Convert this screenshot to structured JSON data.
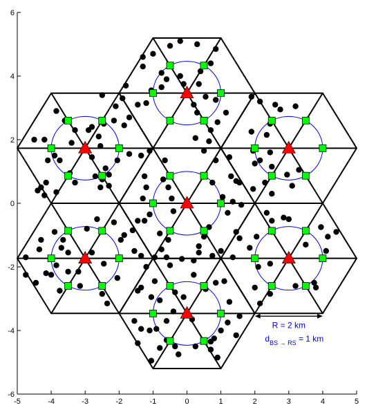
{
  "chart_data": {
    "type": "scatter",
    "title": "",
    "xlabel": "",
    "ylabel": "",
    "xlim": [
      -5,
      5
    ],
    "ylim": [
      -6,
      6
    ],
    "x_ticks": [
      -5,
      -4,
      -3,
      -2,
      -1,
      0,
      1,
      2,
      3,
      4,
      5
    ],
    "y_ticks": [
      -6,
      -4,
      -2,
      0,
      2,
      4,
      6
    ],
    "grid": false,
    "legend": "none",
    "colors": {
      "hex_edge": "#000000",
      "circle": "#0000ff",
      "base_station": "#ff0000",
      "relay_station": "#00ff00",
      "user": "#000000",
      "annotation_text": "#0000ff"
    },
    "cluster": {
      "cell_radius_km": 2,
      "center_hexagons": [
        {
          "x": 0,
          "y": 0
        },
        {
          "x": 0,
          "y": 3.464
        },
        {
          "x": 3,
          "y": 1.732
        },
        {
          "x": 3,
          "y": -1.732
        },
        {
          "x": 0,
          "y": -3.464
        },
        {
          "x": -3,
          "y": -1.732
        },
        {
          "x": -3,
          "y": 1.732
        }
      ],
      "relay_circle_radius_km": 1
    },
    "series": [
      {
        "marker": "triangle",
        "color": "#ff0000",
        "points": [
          [
            0,
            0
          ],
          [
            0,
            3.464
          ],
          [
            3,
            1.732
          ],
          [
            3,
            -1.732
          ],
          [
            0,
            -3.464
          ],
          [
            -3,
            -1.732
          ],
          [
            -3,
            1.732
          ]
        ]
      },
      {
        "marker": "square",
        "color": "#00ff00",
        "per_cell_offsets": [
          [
            1,
            0
          ],
          [
            0.5,
            0.866
          ],
          [
            -0.5,
            0.866
          ],
          [
            -1,
            0
          ],
          [
            -0.5,
            -0.866
          ],
          [
            0.5,
            -0.866
          ]
        ]
      },
      {
        "marker": "dot",
        "color": "#000000",
        "points": [
          [
            -0.2,
            5.1
          ],
          [
            -0.5,
            4.95
          ],
          [
            0.3,
            5.0
          ],
          [
            0.85,
            4.85
          ],
          [
            -1,
            4.7
          ],
          [
            0.7,
            4.4
          ],
          [
            -1.3,
            4.6
          ],
          [
            -0.75,
            4.1
          ],
          [
            0.4,
            4.15
          ],
          [
            -1.3,
            4.3
          ],
          [
            -0.2,
            4.0
          ],
          [
            -0.6,
            3.9
          ],
          [
            0.35,
            3.75
          ],
          [
            -1.05,
            3.55
          ],
          [
            -0.1,
            3.75
          ],
          [
            -0.75,
            3.65
          ],
          [
            0.55,
            3.35
          ],
          [
            0.2,
            3.1
          ],
          [
            -1.2,
            3.15
          ],
          [
            0.3,
            2.85
          ],
          [
            0.85,
            3.25
          ],
          [
            -1.45,
            3.1
          ],
          [
            0.9,
            2.55
          ],
          [
            0.7,
            2.3
          ],
          [
            1.15,
            2.85
          ],
          [
            0.25,
            2.05
          ],
          [
            0.65,
            1.95
          ],
          [
            -1.8,
            3.7
          ],
          [
            -2.5,
            3.4
          ],
          [
            -2.1,
            3.05
          ],
          [
            -1.9,
            3.3
          ],
          [
            -1.7,
            2.7
          ],
          [
            -2.8,
            2.4
          ],
          [
            -2.15,
            2.6
          ],
          [
            -2.45,
            2.5
          ],
          [
            -2.6,
            2.1
          ],
          [
            -1.85,
            2.45
          ],
          [
            -3.85,
            2.9
          ],
          [
            -3.6,
            2.6
          ],
          [
            -3.3,
            2.3
          ],
          [
            -2.9,
            2.3
          ],
          [
            -4.2,
            2.0
          ],
          [
            -3.4,
            1.9
          ],
          [
            -4.5,
            2.0
          ],
          [
            -3.9,
            1.5
          ],
          [
            -4.1,
            1.35
          ],
          [
            -3.75,
            1.35
          ],
          [
            -2.55,
            1.8
          ],
          [
            -2.8,
            1.45
          ],
          [
            -2.05,
            1.35
          ],
          [
            -2.4,
            1.1
          ],
          [
            -2.3,
            0.9
          ],
          [
            -3.45,
            0.95
          ],
          [
            -3.3,
            0.65
          ],
          [
            -4.15,
            0.65
          ],
          [
            -4.3,
            0.5
          ],
          [
            -3.85,
            0.35
          ],
          [
            -2.55,
            0.5
          ],
          [
            -2.3,
            0.55
          ],
          [
            -2.5,
            0.75
          ],
          [
            -2.7,
            0.85
          ],
          [
            -4.2,
            0.25
          ],
          [
            -4.4,
            0.4
          ],
          [
            -1.35,
            1.5
          ],
          [
            -1.25,
            0.85
          ],
          [
            -1.2,
            0.5
          ],
          [
            -1.3,
            0.15
          ],
          [
            -1.7,
            1.55
          ],
          [
            -1.1,
            1.65
          ],
          [
            -0.65,
            1.35
          ],
          [
            -0.7,
            0.75
          ],
          [
            -0.55,
            0.5
          ],
          [
            -0.45,
            0.15
          ],
          [
            -0.4,
            -0.25
          ],
          [
            -1.1,
            -0.35
          ],
          [
            -1.25,
            -0.55
          ],
          [
            -1.45,
            -0.55
          ],
          [
            -1.6,
            -0.85
          ],
          [
            -1.85,
            -1.0
          ],
          [
            -1.95,
            -1.15
          ],
          [
            -1.55,
            -1.5
          ],
          [
            -1.35,
            -1.65
          ],
          [
            0.5,
            1.65
          ],
          [
            0.85,
            1.35
          ],
          [
            1.25,
            1.45
          ],
          [
            1.3,
            0.85
          ],
          [
            1.45,
            0.7
          ],
          [
            1.55,
            0.65
          ],
          [
            0.75,
            0.65
          ],
          [
            1.05,
            0.2
          ],
          [
            1.35,
            0.05
          ],
          [
            1.2,
            -0.3
          ],
          [
            1.45,
            -0.9
          ],
          [
            1.55,
            -1.1
          ],
          [
            1.35,
            -1.7
          ],
          [
            1.0,
            -1.5
          ],
          [
            0.75,
            -1.65
          ],
          [
            0.5,
            -1.05
          ],
          [
            0.65,
            -0.75
          ],
          [
            0.35,
            -1.35
          ],
          [
            0.35,
            -1.55
          ],
          [
            0.2,
            -1.8
          ],
          [
            -0.8,
            -0.95
          ],
          [
            -0.55,
            -1.15
          ],
          [
            -0.75,
            -1.45
          ],
          [
            -0.95,
            -1.7
          ],
          [
            -0.15,
            -1.75
          ],
          [
            -0.6,
            -1.7
          ],
          [
            2.15,
            3.2
          ],
          [
            1.9,
            3.35
          ],
          [
            2.6,
            3.1
          ],
          [
            2.75,
            2.95
          ],
          [
            3.2,
            3.05
          ],
          [
            3.5,
            2.6
          ],
          [
            2.45,
            2.5
          ],
          [
            1.9,
            2.25
          ],
          [
            2.35,
            2.15
          ],
          [
            1.95,
            1.65
          ],
          [
            2.45,
            1.6
          ],
          [
            2.15,
            1.35
          ],
          [
            2.0,
            1.25
          ],
          [
            2.5,
            1.15
          ],
          [
            3.3,
            1.05
          ],
          [
            2.95,
            0.9
          ],
          [
            3.1,
            0.55
          ],
          [
            1.95,
            0.45
          ],
          [
            2.5,
            0.3
          ],
          [
            2.3,
            0.65
          ],
          [
            1.6,
            -0.05
          ],
          [
            2.35,
            -0.3
          ],
          [
            2.5,
            -0.55
          ],
          [
            2.85,
            -0.45
          ],
          [
            3.0,
            -0.5
          ],
          [
            3.95,
            -0.75
          ],
          [
            4.4,
            -0.9
          ],
          [
            3.5,
            -1.3
          ],
          [
            2.05,
            -1.05
          ],
          [
            2.5,
            -0.9
          ],
          [
            1.85,
            -1.4
          ],
          [
            4.1,
            -1.5
          ],
          [
            4.15,
            -1.05
          ],
          [
            2.45,
            -1.9
          ],
          [
            2.1,
            -2.0
          ],
          [
            2.0,
            -2.65
          ],
          [
            2.45,
            -2.85
          ],
          [
            3.75,
            -2.5
          ],
          [
            3.8,
            -2.65
          ],
          [
            2.15,
            -3.15
          ],
          [
            3.2,
            -2.6
          ],
          [
            -4.75,
            -1.7
          ],
          [
            -4.45,
            -2.5
          ],
          [
            -4.3,
            -1.15
          ],
          [
            -4.35,
            -1.45
          ],
          [
            -3.9,
            -0.9
          ],
          [
            -3.65,
            -1.15
          ],
          [
            -3.7,
            -1.4
          ],
          [
            -3.5,
            -1.55
          ],
          [
            -2.65,
            -0.5
          ],
          [
            -2.95,
            -0.8
          ],
          [
            -2.15,
            -0.6
          ],
          [
            -2.8,
            -1.55
          ],
          [
            -2.45,
            -1.9
          ],
          [
            -2.05,
            -2.35
          ],
          [
            -2.5,
            -2.85
          ],
          [
            -2.35,
            -3.15
          ],
          [
            -3.75,
            -2.75
          ],
          [
            -4.0,
            -2.25
          ],
          [
            -4.15,
            -2.2
          ],
          [
            -3.15,
            -2.6
          ],
          [
            -3.85,
            -1.95
          ],
          [
            -3.2,
            -2.15
          ],
          [
            -3.5,
            -2.15
          ],
          [
            -4.75,
            -2.25
          ],
          [
            -1.2,
            -2.0
          ],
          [
            -0.5,
            -1.95
          ],
          [
            -0.95,
            -2.45
          ],
          [
            -1.35,
            -2.65
          ],
          [
            -1.45,
            -2.75
          ],
          [
            -1.05,
            -2.95
          ],
          [
            -0.8,
            -3.05
          ],
          [
            -0.35,
            -2.8
          ],
          [
            -0.1,
            -2.95
          ],
          [
            -0.4,
            -3.4
          ],
          [
            0.15,
            -3.65
          ],
          [
            -0.6,
            -3.7
          ],
          [
            -1.55,
            -3.7
          ],
          [
            -1.35,
            -3.95
          ],
          [
            -1.1,
            -4.0
          ],
          [
            -0.9,
            -3.95
          ],
          [
            0.2,
            -2.25
          ],
          [
            0.55,
            -2.7
          ],
          [
            0.85,
            -2.5
          ],
          [
            1.1,
            -2.45
          ],
          [
            1.25,
            -3.1
          ],
          [
            1.55,
            -3.55
          ],
          [
            1.0,
            -4.0
          ],
          [
            0.8,
            -4.25
          ],
          [
            0.7,
            -4.35
          ],
          [
            0.7,
            -4.6
          ],
          [
            0.9,
            -4.85
          ],
          [
            -0.35,
            -4.5
          ],
          [
            -0.25,
            -4.75
          ],
          [
            -0.8,
            -4.55
          ],
          [
            -0.6,
            -4.3
          ],
          [
            -1.45,
            -4.4
          ],
          [
            -1.05,
            -4.95
          ],
          [
            0.25,
            -4.5
          ],
          [
            1.45,
            -4.15
          ],
          [
            1.2,
            -3.75
          ]
        ]
      }
    ],
    "annotations": {
      "radius_label": "R = 2 km",
      "distance_label_prefix": "d",
      "distance_label_subscript": "BS → RS",
      "distance_label_suffix": " = 1 km"
    }
  }
}
